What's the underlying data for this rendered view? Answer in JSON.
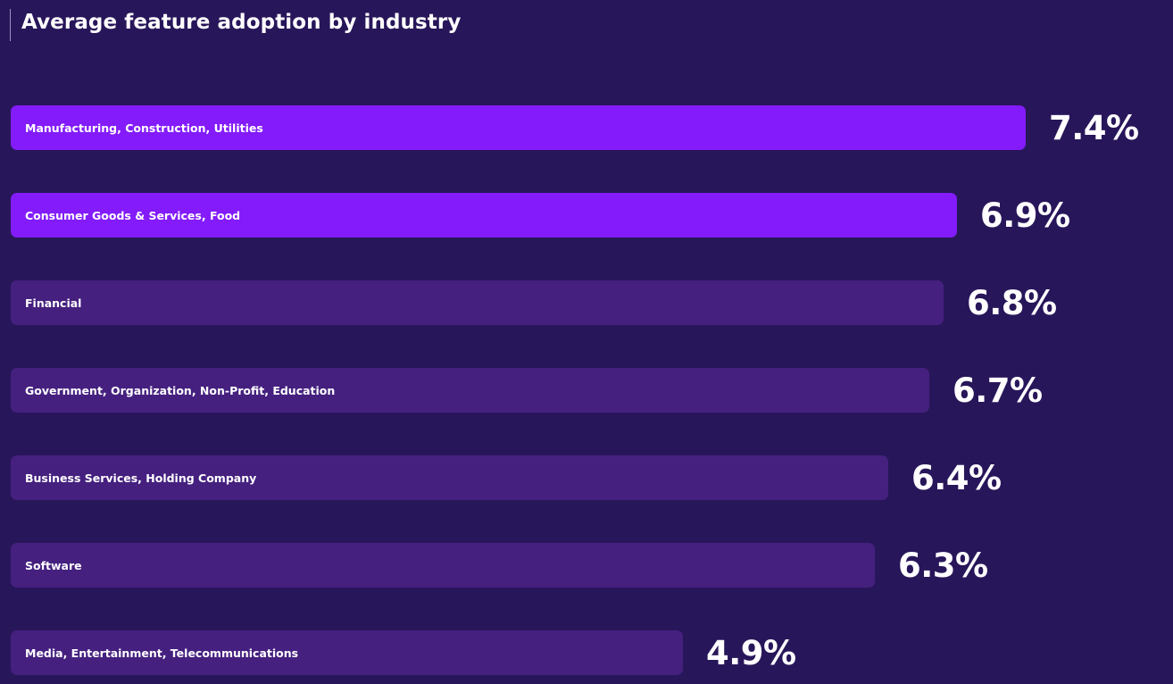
{
  "chart_data": {
    "type": "bar",
    "orientation": "horizontal",
    "title": "Average feature adoption by industry",
    "categories": [
      "Manufacturing, Construction, Utilities",
      "Consumer Goods & Services, Food",
      "Financial",
      "Government, Organization, Non-Profit, Education",
      "Business Services, Holding Company",
      "Software",
      "Media, Entertainment, Telecommunications"
    ],
    "values": [
      7.4,
      6.9,
      6.8,
      6.7,
      6.4,
      6.3,
      4.9
    ],
    "value_labels": [
      "7.4%",
      "6.9%",
      "6.8%",
      "6.7%",
      "6.4%",
      "6.3%",
      "4.9%"
    ],
    "unit": "%",
    "xlim": [
      0,
      7.4
    ],
    "grid": false,
    "legend": "none",
    "highlighted": [
      true,
      true,
      false,
      false,
      false,
      false,
      false
    ],
    "colors": {
      "background": "#28165a",
      "highlight_bar": "#831bfa",
      "bar": "#45207f",
      "text": "#ffffff"
    }
  }
}
